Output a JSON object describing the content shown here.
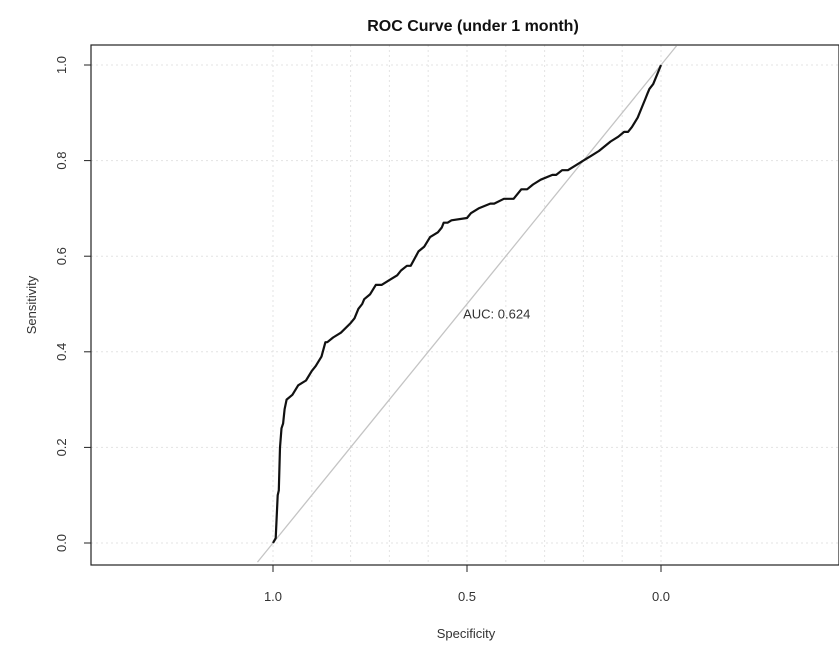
{
  "chart_data": {
    "type": "line",
    "title": "ROC Curve (under 1 month)",
    "xlabel": "Specificity",
    "ylabel": "Sensitivity",
    "xlim": [
      1.4,
      -0.4
    ],
    "ylim": [
      -0.04,
      1.04
    ],
    "x_reversed": true,
    "grid": true,
    "x_ticks": [
      1.0,
      0.5,
      0.0
    ],
    "x_tick_labels": [
      "1.0",
      "0.5",
      "0.0"
    ],
    "y_ticks": [
      0.0,
      0.2,
      0.4,
      0.6,
      0.8,
      1.0
    ],
    "y_tick_labels": [
      "0.0",
      "0.2",
      "0.4",
      "0.6",
      "0.8",
      "1.0"
    ],
    "annotation": {
      "text": "AUC: 0.624",
      "x": 0.51,
      "y": 0.48
    },
    "reference_line": {
      "x": [
        1.0,
        0.0
      ],
      "y": [
        0.0,
        1.0
      ],
      "color": "#bbbbbb"
    },
    "series": [
      {
        "color": "#111111",
        "x": [
          1.0,
          0.993,
          0.988,
          0.985,
          0.982,
          0.978,
          0.974,
          0.97,
          0.965,
          0.95,
          0.935,
          0.915,
          0.9,
          0.89,
          0.875,
          0.865,
          0.86,
          0.845,
          0.825,
          0.8,
          0.79,
          0.78,
          0.77,
          0.765,
          0.75,
          0.735,
          0.72,
          0.7,
          0.68,
          0.67,
          0.655,
          0.645,
          0.625,
          0.61,
          0.595,
          0.575,
          0.565,
          0.56,
          0.55,
          0.54,
          0.5,
          0.49,
          0.47,
          0.44,
          0.43,
          0.405,
          0.38,
          0.36,
          0.345,
          0.33,
          0.31,
          0.28,
          0.27,
          0.255,
          0.24,
          0.22,
          0.2,
          0.18,
          0.16,
          0.13,
          0.11,
          0.095,
          0.085,
          0.075,
          0.06,
          0.05,
          0.04,
          0.035,
          0.03,
          0.02,
          0.01,
          0.0
        ],
        "y": [
          0.0,
          0.01,
          0.1,
          0.11,
          0.2,
          0.24,
          0.25,
          0.28,
          0.3,
          0.31,
          0.33,
          0.34,
          0.36,
          0.37,
          0.39,
          0.42,
          0.42,
          0.43,
          0.44,
          0.46,
          0.47,
          0.49,
          0.5,
          0.51,
          0.52,
          0.54,
          0.54,
          0.55,
          0.56,
          0.57,
          0.58,
          0.58,
          0.61,
          0.62,
          0.64,
          0.65,
          0.66,
          0.67,
          0.67,
          0.675,
          0.68,
          0.69,
          0.7,
          0.71,
          0.71,
          0.72,
          0.72,
          0.74,
          0.74,
          0.75,
          0.76,
          0.77,
          0.77,
          0.78,
          0.78,
          0.79,
          0.8,
          0.81,
          0.82,
          0.84,
          0.85,
          0.86,
          0.86,
          0.87,
          0.89,
          0.91,
          0.93,
          0.94,
          0.95,
          0.96,
          0.98,
          1.0
        ]
      }
    ]
  }
}
